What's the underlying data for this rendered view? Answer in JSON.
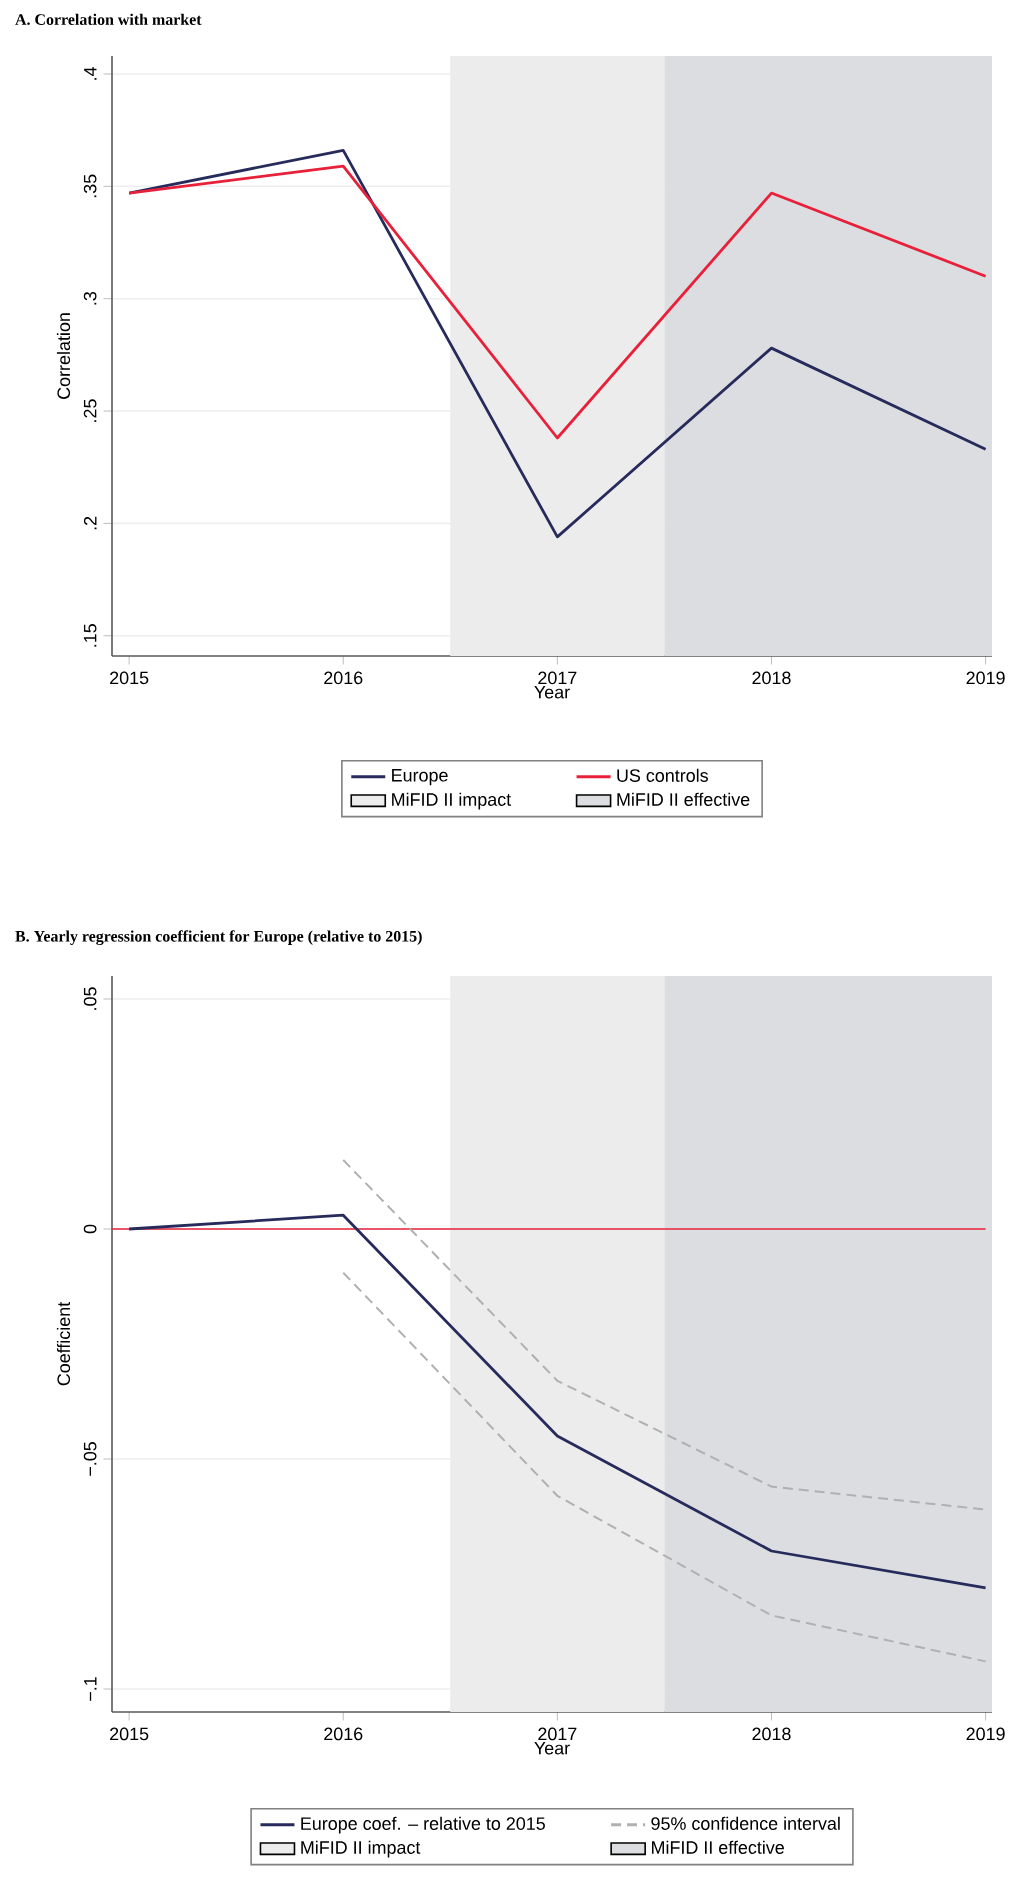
{
  "chart_data": [
    {
      "type": "line",
      "title": "A. Correlation with market",
      "xlabel": "Year",
      "ylabel": "Correlation",
      "x": [
        2015,
        2016,
        2017,
        2018,
        2019
      ],
      "series": [
        {
          "name": "Europe",
          "color": "#262b5c",
          "values": [
            0.347,
            0.366,
            0.194,
            0.278,
            0.233
          ]
        },
        {
          "name": "US controls",
          "color": "#e8203a",
          "values": [
            0.347,
            0.359,
            0.238,
            0.347,
            0.31
          ]
        }
      ],
      "xlim": [
        2014.92,
        2019.03
      ],
      "ylim": [
        0.141,
        0.408
      ],
      "xticks": [
        2015,
        2016,
        2017,
        2018,
        2019
      ],
      "yticks": [
        {
          "value": 0.15,
          "label": ".15"
        },
        {
          "value": 0.2,
          "label": ".2"
        },
        {
          "value": 0.25,
          "label": ".25"
        },
        {
          "value": 0.3,
          "label": ".3"
        },
        {
          "value": 0.35,
          "label": ".35"
        },
        {
          "value": 0.4,
          "label": ".4"
        }
      ],
      "bands": [
        {
          "axis": "x",
          "from": 2016.5,
          "to": 2017.5,
          "label": "MiFID II impact",
          "color": "#ececec"
        },
        {
          "axis": "x",
          "from": 2017.5,
          "to": 2019.03,
          "label": "MiFID II effective",
          "color": "#dcdde0"
        }
      ],
      "grid": "y",
      "legend": "bottom"
    },
    {
      "type": "line",
      "title": "B. Yearly regression coefficient for Europe (relative to 2015)",
      "xlabel": "Year",
      "ylabel": "Coefficient",
      "x": [
        2015,
        2016,
        2017,
        2018,
        2019
      ],
      "series": [
        {
          "name": "Europe coef. – relative to 2015",
          "color": "#262b5c",
          "values": [
            0,
            0.003,
            -0.045,
            -0.07,
            -0.078
          ]
        },
        {
          "name": "95% confidence interval",
          "color": "#b0b0b0",
          "line_style": "dashed",
          "x": [
            2016,
            2017,
            2018,
            2019
          ],
          "values": [
            0.015,
            -0.033,
            -0.056,
            -0.061
          ]
        },
        {
          "color": "#b0b0b0",
          "line_style": "dashed",
          "x": [
            2016,
            2017,
            2018,
            2019
          ],
          "values": [
            -0.0095,
            -0.058,
            -0.084,
            -0.094
          ]
        }
      ],
      "xlim": [
        2014.92,
        2019.03
      ],
      "ylim": [
        -0.105,
        0.055
      ],
      "xticks": [
        2015,
        2016,
        2017,
        2018,
        2019
      ],
      "yticks": [
        {
          "value": -0.1,
          "label": "−.1"
        },
        {
          "value": -0.05,
          "label": "−.05"
        },
        {
          "value": 0,
          "label": "0"
        },
        {
          "value": 0.05,
          "label": ".05"
        }
      ],
      "bands": [
        {
          "axis": "x",
          "from": 2016.5,
          "to": 2017.5,
          "label": "MiFID II impact",
          "color": "#ececec"
        },
        {
          "axis": "x",
          "from": 2017.5,
          "to": 2019.03,
          "label": "MiFID II effective",
          "color": "#dcdde0"
        }
      ],
      "ref_lines": [
        {
          "axis": "y",
          "value": 0,
          "color": "#e8203a"
        }
      ],
      "grid": "y",
      "legend": "bottom"
    }
  ]
}
